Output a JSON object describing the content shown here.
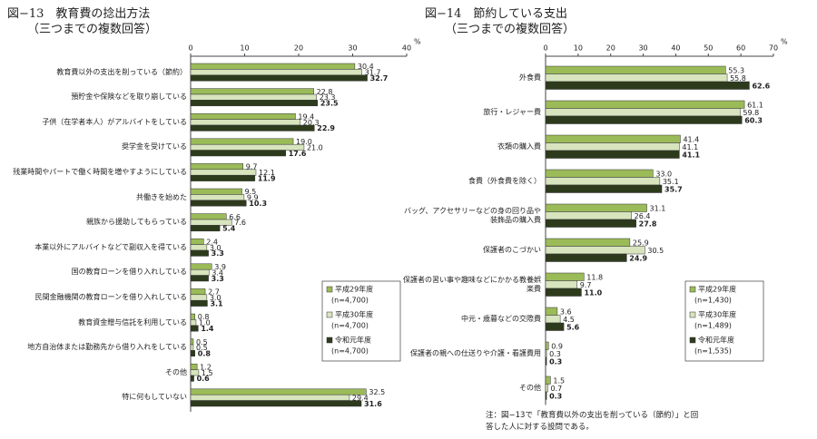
{
  "chart_data": [
    {
      "type": "bar",
      "orientation": "horizontal",
      "title": "図−13　教育費の捻出方法",
      "subtitle": "（三つまでの複数回答）",
      "unit": "%",
      "categories": [
        "教育費以外の支出を削っている（節約）",
        "預貯金や保険などを取り崩している",
        "子供（在学者本人）がアルバイトをしている",
        "奨学金を受けている",
        "残業時間やパートで働く時間を増やすようにしている",
        "共働きを始めた",
        "親族から援助してもらっている",
        "本業以外にアルバイトなどで副収入を得ている",
        "国の教育ローンを借り入れしている",
        "民間金融機関の教育ローンを借り入れしている",
        "教育資金贈与信託を利用している",
        "地方自治体または勤務先から借り入れをしている",
        "その他",
        "特に何もしていない"
      ],
      "series": [
        {
          "name": "平成29年度",
          "sample": "(n=4,700)",
          "color": "#9bbb59",
          "values": [
            30.4,
            22.8,
            19.4,
            19.0,
            9.7,
            9.5,
            6.6,
            2.4,
            3.9,
            2.7,
            0.8,
            0.5,
            1.2,
            32.5
          ],
          "value_labels": [
            "30.4",
            "22.8",
            "19.4",
            "19.0",
            "9.7",
            "9.5",
            "6.6",
            "2.4",
            "3.9",
            "2.7",
            "0.8",
            "0.5",
            "1.2",
            "32.5"
          ]
        },
        {
          "name": "平成30年度",
          "sample": "(n=4,700)",
          "color": "#d7e4bd",
          "values": [
            31.7,
            23.3,
            20.3,
            21.0,
            12.1,
            9.9,
            7.6,
            3.0,
            3.4,
            3.0,
            1.0,
            0.5,
            1.5,
            29.4
          ],
          "value_labels": [
            "31.7",
            "23.3",
            "20.3",
            "21.0",
            "12.1",
            "9.9",
            "7.6",
            "3.0",
            "3.4",
            "3.0",
            "1.0",
            "0.5",
            "1.5",
            "29.4"
          ]
        },
        {
          "name": "令和元年度",
          "sample": "(n=4,700)",
          "color": "#2d3b1c",
          "values": [
            32.7,
            23.5,
            22.9,
            17.6,
            11.9,
            10.3,
            5.4,
            3.3,
            3.3,
            3.1,
            1.4,
            0.8,
            0.6,
            31.6
          ],
          "value_labels": [
            "32.7",
            "23.5",
            "22.9",
            "17.6",
            "11.9",
            "10.3",
            "5.4",
            "3.3",
            "3.3",
            "3.1",
            "1.4",
            "0.8",
            "0.6",
            "31.6"
          ],
          "bold_labels": true
        }
      ],
      "xlim": [
        0,
        40
      ],
      "xticks": [
        0,
        10,
        20,
        30,
        40
      ],
      "grid": false,
      "legend": "lower right"
    },
    {
      "type": "bar",
      "orientation": "horizontal",
      "title": "図−14　節約している支出",
      "subtitle": "（三つまでの複数回答）",
      "unit": "%",
      "categories": [
        "外食費",
        "旅行・レジャー費",
        "衣類の購入費",
        "食費（外食費を除く）",
        "バッグ、アクセサリーなどの身の回り品や装飾品の購入費",
        "保護者のこづかい",
        "保護者の習い事や趣味などにかかる教養娯楽費",
        "中元・歳暮などの交際費",
        "保護者の親への仕送りや介護・看護費用",
        "その他"
      ],
      "series": [
        {
          "name": "平成29年度",
          "sample": "(n=1,430)",
          "color": "#9bbb59",
          "values": [
            55.3,
            61.1,
            41.4,
            33.0,
            31.1,
            25.9,
            11.8,
            3.6,
            0.9,
            1.5
          ],
          "value_labels": [
            "55.3",
            "61.1",
            "41.4",
            "33.0",
            "31.1",
            "25.9",
            "11.8",
            "3.6",
            "0.9",
            "1.5"
          ]
        },
        {
          "name": "平成30年度",
          "sample": "(n=1,489)",
          "color": "#d7e4bd",
          "values": [
            55.8,
            59.8,
            41.1,
            35.1,
            26.4,
            30.5,
            9.7,
            4.5,
            0.3,
            0.7
          ],
          "value_labels": [
            "55.8",
            "59.8",
            "41.1",
            "35.1",
            "26.4",
            "30.5",
            "9.7",
            "4.5",
            "0.3",
            "0.7"
          ]
        },
        {
          "name": "令和元年度",
          "sample": "(n=1,535)",
          "color": "#2d3b1c",
          "values": [
            62.6,
            60.3,
            41.1,
            35.7,
            27.8,
            24.9,
            11.0,
            5.6,
            0.3,
            0.3
          ],
          "value_labels": [
            "62.6",
            "60.3",
            "41.1",
            "35.7",
            "27.8",
            "24.9",
            "11.0",
            "5.6",
            "0.3",
            "0.3"
          ],
          "bold_labels": true
        }
      ],
      "xlim": [
        0,
        70
      ],
      "xticks": [
        0,
        10,
        20,
        30,
        40,
        50,
        60,
        70
      ],
      "grid": false,
      "legend": "lower right",
      "note": "注：図−13で「教育費以外の支出を削っている（節約）」と回答した人に対する設問である。"
    }
  ]
}
